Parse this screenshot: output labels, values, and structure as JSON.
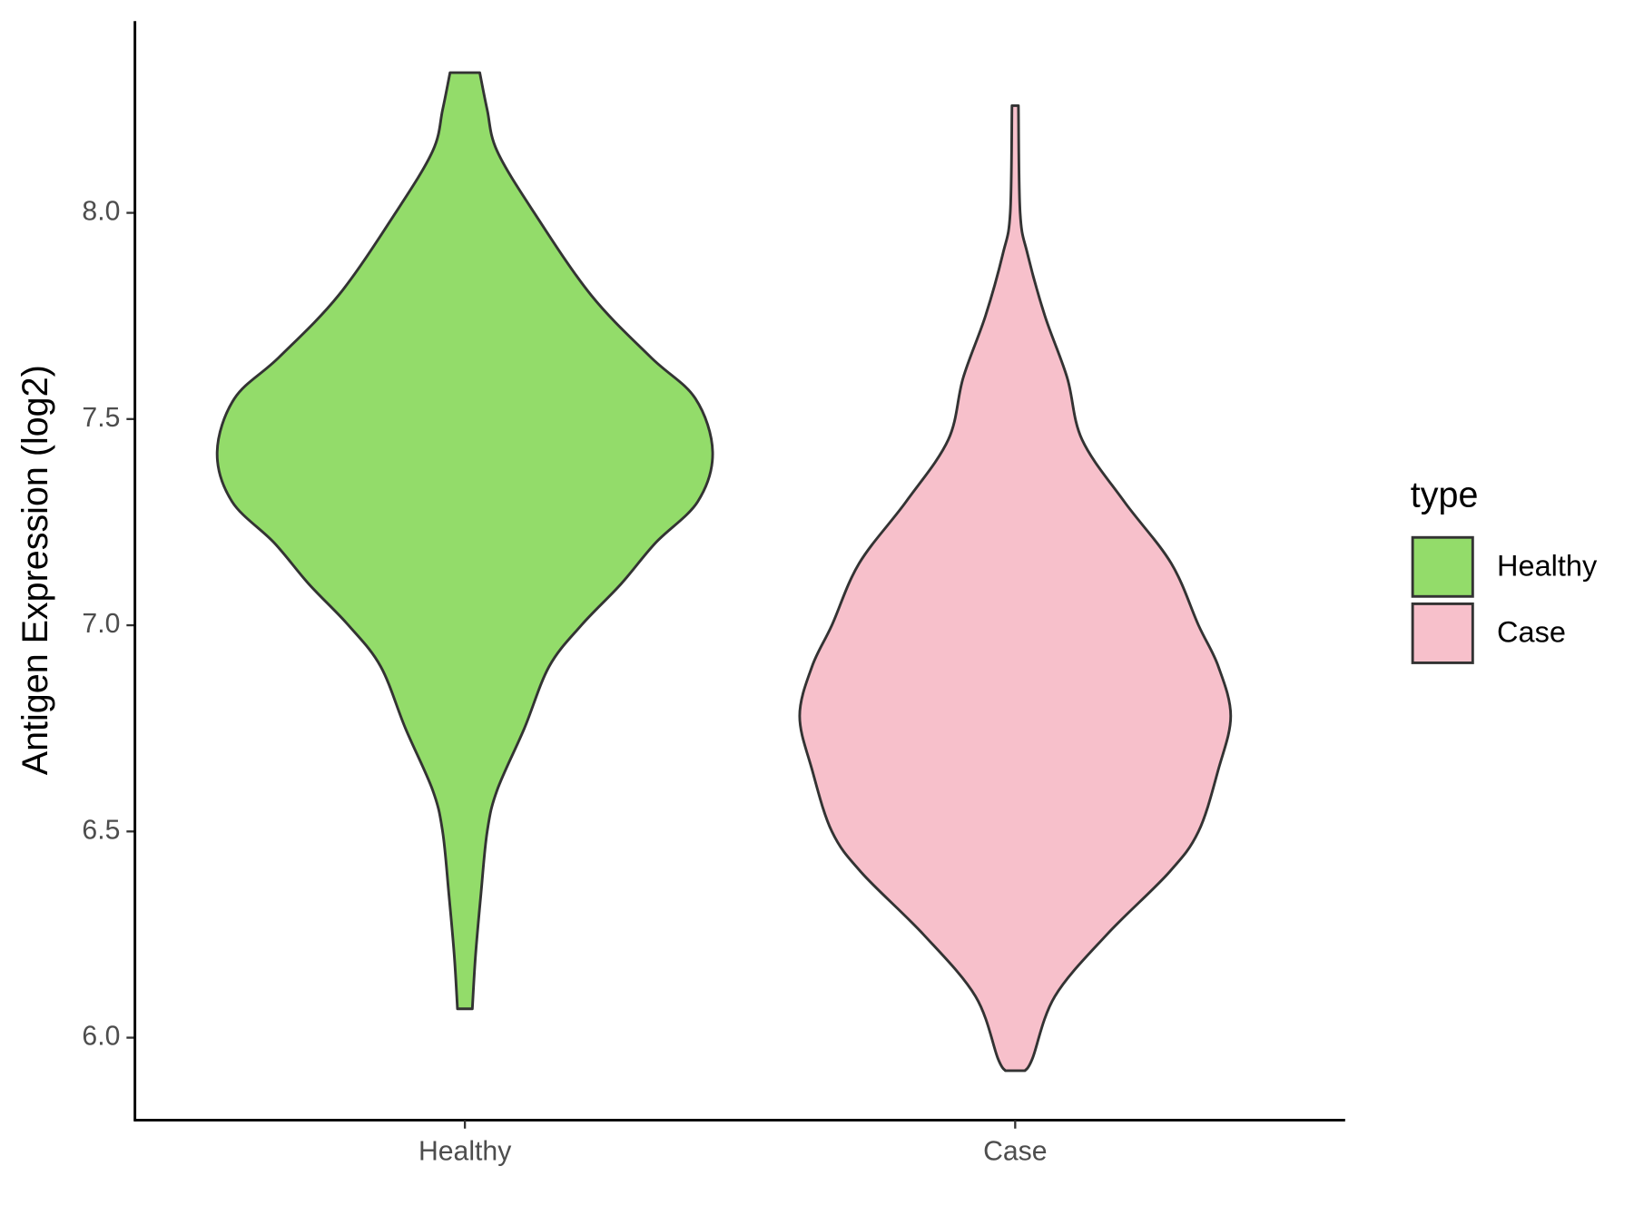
{
  "chart_data": {
    "type": "violin",
    "y_label": "Antigen Expression (log2)",
    "categories": [
      "Healthy",
      "Case"
    ],
    "ylim": [
      5.8,
      8.465
    ],
    "yticks": [
      {
        "value": 6,
        "label": "6.0"
      },
      {
        "value": 6.5,
        "label": "6.5"
      },
      {
        "value": 7,
        "label": "7.0"
      },
      {
        "value": 7.5,
        "label": "7.5"
      },
      {
        "value": 8,
        "label": "8.0"
      }
    ],
    "legend_title": "type",
    "legend_position": "right",
    "series": [
      {
        "name": "Healthy",
        "color": "#93dc6a",
        "y": [
          8.34,
          8.25,
          8.15,
          8.0,
          7.8,
          7.65,
          7.55,
          7.42,
          7.3,
          7.2,
          7.1,
          7.0,
          6.9,
          6.75,
          6.6,
          6.5,
          6.35,
          6.2,
          6.07
        ],
        "width": [
          0.06,
          0.09,
          0.13,
          0.28,
          0.51,
          0.75,
          0.93,
          1.0,
          0.94,
          0.77,
          0.63,
          0.47,
          0.34,
          0.24,
          0.13,
          0.09,
          0.065,
          0.043,
          0.03
        ]
      },
      {
        "name": "Case",
        "color": "#f7c0cb",
        "y": [
          8.26,
          8.0,
          7.9,
          7.75,
          7.6,
          7.45,
          7.3,
          7.15,
          7.0,
          6.9,
          6.78,
          6.65,
          6.5,
          6.4,
          6.25,
          6.1,
          5.95,
          5.92
        ],
        "width": [
          0.013,
          0.02,
          0.05,
          0.12,
          0.21,
          0.27,
          0.44,
          0.63,
          0.74,
          0.82,
          0.87,
          0.82,
          0.74,
          0.62,
          0.37,
          0.16,
          0.07,
          0.04
        ]
      }
    ]
  }
}
